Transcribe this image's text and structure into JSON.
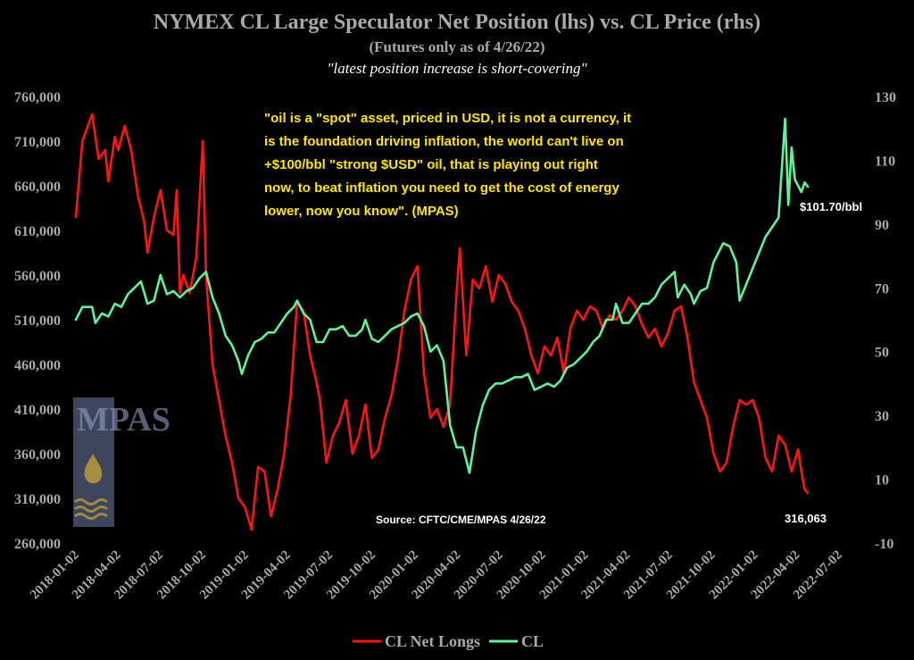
{
  "chart_data": {
    "type": "line",
    "title": "NYMEX CL Large Speculator Net Position (lhs) vs. CL Price (rhs)",
    "subtitle": "(Futures only as of 4/26/22)",
    "tagline": "\"latest position increase is short-covering\"",
    "quote_lines": [
      "\"oil is a \"spot\" asset, priced in USD, it is not a currency, it",
      "is the foundation driving inflation, the world can't live on",
      "+$100/bbl \"strong $USD\" oil, that is playing out right",
      "now, to beat inflation you need to get the cost of energy",
      "lower, now you know\". (MPAS)"
    ],
    "source": "Source: CFTC/CME/MPAS 4/26/22",
    "watermark": "MPAS",
    "y_left": {
      "min": 260000,
      "max": 760000,
      "ticks": [
        260000,
        310000,
        360000,
        410000,
        460000,
        510000,
        560000,
        610000,
        660000,
        710000,
        760000
      ],
      "tick_labels": [
        "260,000",
        "310,000",
        "360,000",
        "410,000",
        "460,000",
        "510,000",
        "560,000",
        "610,000",
        "660,000",
        "710,000",
        "760,000"
      ]
    },
    "y_right": {
      "min": -10,
      "max": 130,
      "ticks": [
        -10,
        10,
        30,
        50,
        70,
        90,
        110,
        130
      ],
      "tick_labels": [
        "-10",
        "10",
        "30",
        "50",
        "70",
        "90",
        "110",
        "130"
      ]
    },
    "x_axis": {
      "start": "2018-01-02",
      "end": "2022-07-02",
      "tick_labels": [
        "2018-01-02",
        "2018-04-02",
        "2018-07-02",
        "2018-10-02",
        "2019-01-02",
        "2019-04-02",
        "2019-07-02",
        "2019-10-02",
        "2020-01-02",
        "2020-04-02",
        "2020-07-02",
        "2020-10-02",
        "2021-01-02",
        "2021-04-02",
        "2021-07-02",
        "2021-10-02",
        "2022-01-02",
        "2022-04-02",
        "2022-07-02"
      ]
    },
    "legend_position": "bottom",
    "annotations": [
      {
        "text": "$101.70/bbl",
        "series": "CL",
        "date": "2022-04-26"
      },
      {
        "text": "316,063",
        "series": "CL Net Longs",
        "date": "2022-04-26"
      }
    ],
    "series": [
      {
        "name": "CL Net Longs",
        "color": "#ff1414",
        "axis": "left",
        "points": [
          [
            "2018-01-02",
            625000
          ],
          [
            "2018-01-16",
            710000
          ],
          [
            "2018-02-06",
            740000
          ],
          [
            "2018-02-20",
            690000
          ],
          [
            "2018-03-06",
            700000
          ],
          [
            "2018-03-13",
            665000
          ],
          [
            "2018-03-27",
            715000
          ],
          [
            "2018-04-03",
            700000
          ],
          [
            "2018-04-17",
            727000
          ],
          [
            "2018-05-01",
            700000
          ],
          [
            "2018-05-15",
            650000
          ],
          [
            "2018-05-29",
            620000
          ],
          [
            "2018-06-05",
            585000
          ],
          [
            "2018-06-19",
            625000
          ],
          [
            "2018-07-03",
            655000
          ],
          [
            "2018-07-17",
            610000
          ],
          [
            "2018-07-31",
            605000
          ],
          [
            "2018-08-07",
            655000
          ],
          [
            "2018-08-14",
            540000
          ],
          [
            "2018-08-21",
            560000
          ],
          [
            "2018-09-04",
            540000
          ],
          [
            "2018-09-18",
            580000
          ],
          [
            "2018-10-02",
            710000
          ],
          [
            "2018-10-09",
            560000
          ],
          [
            "2018-10-23",
            460000
          ],
          [
            "2018-11-06",
            420000
          ],
          [
            "2018-11-20",
            380000
          ],
          [
            "2018-12-04",
            350000
          ],
          [
            "2018-12-18",
            310000
          ],
          [
            "2019-01-01",
            300000
          ],
          [
            "2019-01-15",
            275000
          ],
          [
            "2019-01-29",
            345000
          ],
          [
            "2019-02-12",
            340000
          ],
          [
            "2019-02-26",
            290000
          ],
          [
            "2019-03-12",
            320000
          ],
          [
            "2019-03-26",
            360000
          ],
          [
            "2019-04-09",
            425000
          ],
          [
            "2019-04-23",
            530000
          ],
          [
            "2019-05-07",
            520000
          ],
          [
            "2019-05-21",
            470000
          ],
          [
            "2019-06-04",
            440000
          ],
          [
            "2019-06-11",
            420000
          ],
          [
            "2019-06-25",
            350000
          ],
          [
            "2019-07-09",
            380000
          ],
          [
            "2019-07-23",
            395000
          ],
          [
            "2019-08-06",
            420000
          ],
          [
            "2019-08-20",
            360000
          ],
          [
            "2019-09-03",
            380000
          ],
          [
            "2019-09-17",
            415000
          ],
          [
            "2019-10-01",
            355000
          ],
          [
            "2019-10-15",
            365000
          ],
          [
            "2019-10-29",
            400000
          ],
          [
            "2019-11-12",
            425000
          ],
          [
            "2019-11-26",
            465000
          ],
          [
            "2019-12-10",
            520000
          ],
          [
            "2019-12-24",
            555000
          ],
          [
            "2020-01-07",
            570000
          ],
          [
            "2020-01-21",
            450000
          ],
          [
            "2020-02-04",
            400000
          ],
          [
            "2020-02-18",
            410000
          ],
          [
            "2020-03-03",
            390000
          ],
          [
            "2020-03-17",
            415000
          ],
          [
            "2020-03-31",
            540000
          ],
          [
            "2020-04-07",
            590000
          ],
          [
            "2020-04-21",
            470000
          ],
          [
            "2020-05-05",
            555000
          ],
          [
            "2020-05-19",
            545000
          ],
          [
            "2020-06-02",
            570000
          ],
          [
            "2020-06-16",
            530000
          ],
          [
            "2020-06-30",
            560000
          ],
          [
            "2020-07-14",
            550000
          ],
          [
            "2020-07-28",
            530000
          ],
          [
            "2020-08-11",
            520000
          ],
          [
            "2020-08-25",
            500000
          ],
          [
            "2020-09-08",
            470000
          ],
          [
            "2020-09-22",
            450000
          ],
          [
            "2020-10-06",
            480000
          ],
          [
            "2020-10-20",
            470000
          ],
          [
            "2020-11-03",
            490000
          ],
          [
            "2020-11-17",
            450000
          ],
          [
            "2020-12-01",
            500000
          ],
          [
            "2020-12-15",
            520000
          ],
          [
            "2020-12-29",
            510000
          ],
          [
            "2021-01-12",
            525000
          ],
          [
            "2021-01-26",
            520000
          ],
          [
            "2021-02-09",
            500000
          ],
          [
            "2021-02-23",
            515000
          ],
          [
            "2021-03-09",
            510000
          ],
          [
            "2021-03-23",
            520000
          ],
          [
            "2021-04-06",
            535000
          ],
          [
            "2021-04-20",
            525000
          ],
          [
            "2021-05-04",
            505000
          ],
          [
            "2021-05-18",
            490000
          ],
          [
            "2021-06-01",
            500000
          ],
          [
            "2021-06-15",
            480000
          ],
          [
            "2021-06-29",
            495000
          ],
          [
            "2021-07-13",
            520000
          ],
          [
            "2021-07-27",
            525000
          ],
          [
            "2021-08-10",
            490000
          ],
          [
            "2021-08-24",
            440000
          ],
          [
            "2021-09-07",
            420000
          ],
          [
            "2021-09-21",
            400000
          ],
          [
            "2021-10-05",
            360000
          ],
          [
            "2021-10-19",
            340000
          ],
          [
            "2021-11-02",
            350000
          ],
          [
            "2021-11-16",
            390000
          ],
          [
            "2021-11-30",
            420000
          ],
          [
            "2021-12-14",
            415000
          ],
          [
            "2021-12-28",
            420000
          ],
          [
            "2022-01-11",
            400000
          ],
          [
            "2022-01-25",
            355000
          ],
          [
            "2022-02-08",
            340000
          ],
          [
            "2022-02-22",
            380000
          ],
          [
            "2022-03-08",
            370000
          ],
          [
            "2022-03-22",
            340000
          ],
          [
            "2022-04-05",
            365000
          ],
          [
            "2022-04-12",
            340000
          ],
          [
            "2022-04-19",
            320000
          ],
          [
            "2022-04-26",
            316063
          ]
        ]
      },
      {
        "name": "CL",
        "color": "#5ff29a",
        "axis": "right",
        "points": [
          [
            "2018-01-02",
            60
          ],
          [
            "2018-01-16",
            64
          ],
          [
            "2018-02-06",
            64
          ],
          [
            "2018-02-13",
            59
          ],
          [
            "2018-02-27",
            62
          ],
          [
            "2018-03-13",
            61
          ],
          [
            "2018-03-27",
            65
          ],
          [
            "2018-04-10",
            64
          ],
          [
            "2018-04-24",
            68
          ],
          [
            "2018-05-08",
            70
          ],
          [
            "2018-05-22",
            72
          ],
          [
            "2018-06-05",
            65
          ],
          [
            "2018-06-19",
            66
          ],
          [
            "2018-07-03",
            74
          ],
          [
            "2018-07-17",
            68
          ],
          [
            "2018-07-31",
            69
          ],
          [
            "2018-08-14",
            67
          ],
          [
            "2018-08-28",
            69
          ],
          [
            "2018-09-11",
            70
          ],
          [
            "2018-09-25",
            73
          ],
          [
            "2018-10-09",
            75
          ],
          [
            "2018-10-23",
            67
          ],
          [
            "2018-11-06",
            62
          ],
          [
            "2018-11-20",
            55
          ],
          [
            "2018-12-04",
            52
          ],
          [
            "2018-12-18",
            47
          ],
          [
            "2018-12-25",
            43
          ],
          [
            "2019-01-08",
            49
          ],
          [
            "2019-01-22",
            53
          ],
          [
            "2019-02-05",
            54
          ],
          [
            "2019-02-19",
            56
          ],
          [
            "2019-03-05",
            56
          ],
          [
            "2019-03-19",
            59
          ],
          [
            "2019-04-02",
            62
          ],
          [
            "2019-04-16",
            64
          ],
          [
            "2019-04-23",
            66
          ],
          [
            "2019-05-07",
            62
          ],
          [
            "2019-05-21",
            60
          ],
          [
            "2019-06-04",
            53
          ],
          [
            "2019-06-18",
            53
          ],
          [
            "2019-07-02",
            57
          ],
          [
            "2019-07-16",
            57
          ],
          [
            "2019-07-30",
            58
          ],
          [
            "2019-08-13",
            55
          ],
          [
            "2019-08-27",
            55
          ],
          [
            "2019-09-10",
            57
          ],
          [
            "2019-09-17",
            60
          ],
          [
            "2019-10-01",
            54
          ],
          [
            "2019-10-15",
            53
          ],
          [
            "2019-10-29",
            55
          ],
          [
            "2019-11-12",
            57
          ],
          [
            "2019-11-26",
            58
          ],
          [
            "2019-12-10",
            59
          ],
          [
            "2019-12-24",
            61
          ],
          [
            "2020-01-07",
            62
          ],
          [
            "2020-01-21",
            58
          ],
          [
            "2020-02-04",
            50
          ],
          [
            "2020-02-18",
            52
          ],
          [
            "2020-03-03",
            47
          ],
          [
            "2020-03-17",
            27
          ],
          [
            "2020-03-31",
            20
          ],
          [
            "2020-04-14",
            20
          ],
          [
            "2020-04-28",
            12
          ],
          [
            "2020-05-12",
            25
          ],
          [
            "2020-05-26",
            33
          ],
          [
            "2020-06-09",
            38
          ],
          [
            "2020-06-23",
            40
          ],
          [
            "2020-07-07",
            40
          ],
          [
            "2020-07-21",
            41
          ],
          [
            "2020-08-04",
            42
          ],
          [
            "2020-08-18",
            42
          ],
          [
            "2020-09-01",
            43
          ],
          [
            "2020-09-15",
            38
          ],
          [
            "2020-09-29",
            39
          ],
          [
            "2020-10-13",
            40
          ],
          [
            "2020-10-27",
            39
          ],
          [
            "2020-11-10",
            41
          ],
          [
            "2020-11-24",
            45
          ],
          [
            "2020-12-08",
            46
          ],
          [
            "2020-12-22",
            48
          ],
          [
            "2021-01-05",
            50
          ],
          [
            "2021-01-19",
            53
          ],
          [
            "2021-02-02",
            55
          ],
          [
            "2021-02-16",
            60
          ],
          [
            "2021-03-02",
            60
          ],
          [
            "2021-03-09",
            65
          ],
          [
            "2021-03-23",
            59
          ],
          [
            "2021-04-06",
            59
          ],
          [
            "2021-04-20",
            62
          ],
          [
            "2021-05-04",
            65
          ],
          [
            "2021-05-18",
            65
          ],
          [
            "2021-06-01",
            67
          ],
          [
            "2021-06-15",
            71
          ],
          [
            "2021-06-29",
            73
          ],
          [
            "2021-07-13",
            75
          ],
          [
            "2021-07-20",
            67
          ],
          [
            "2021-08-03",
            71
          ],
          [
            "2021-08-17",
            68
          ],
          [
            "2021-08-24",
            65
          ],
          [
            "2021-09-07",
            69
          ],
          [
            "2021-09-21",
            70
          ],
          [
            "2021-10-05",
            78
          ],
          [
            "2021-10-19",
            82
          ],
          [
            "2021-10-26",
            84
          ],
          [
            "2021-11-09",
            83
          ],
          [
            "2021-11-23",
            78
          ],
          [
            "2021-11-30",
            66
          ],
          [
            "2021-12-14",
            71
          ],
          [
            "2021-12-28",
            76
          ],
          [
            "2022-01-11",
            81
          ],
          [
            "2022-01-25",
            86
          ],
          [
            "2022-02-08",
            89
          ],
          [
            "2022-02-22",
            92
          ],
          [
            "2022-03-08",
            123
          ],
          [
            "2022-03-15",
            96
          ],
          [
            "2022-03-22",
            114
          ],
          [
            "2022-03-29",
            104
          ],
          [
            "2022-04-05",
            102
          ],
          [
            "2022-04-12",
            100
          ],
          [
            "2022-04-19",
            103
          ],
          [
            "2022-04-26",
            101.7
          ]
        ]
      }
    ]
  }
}
